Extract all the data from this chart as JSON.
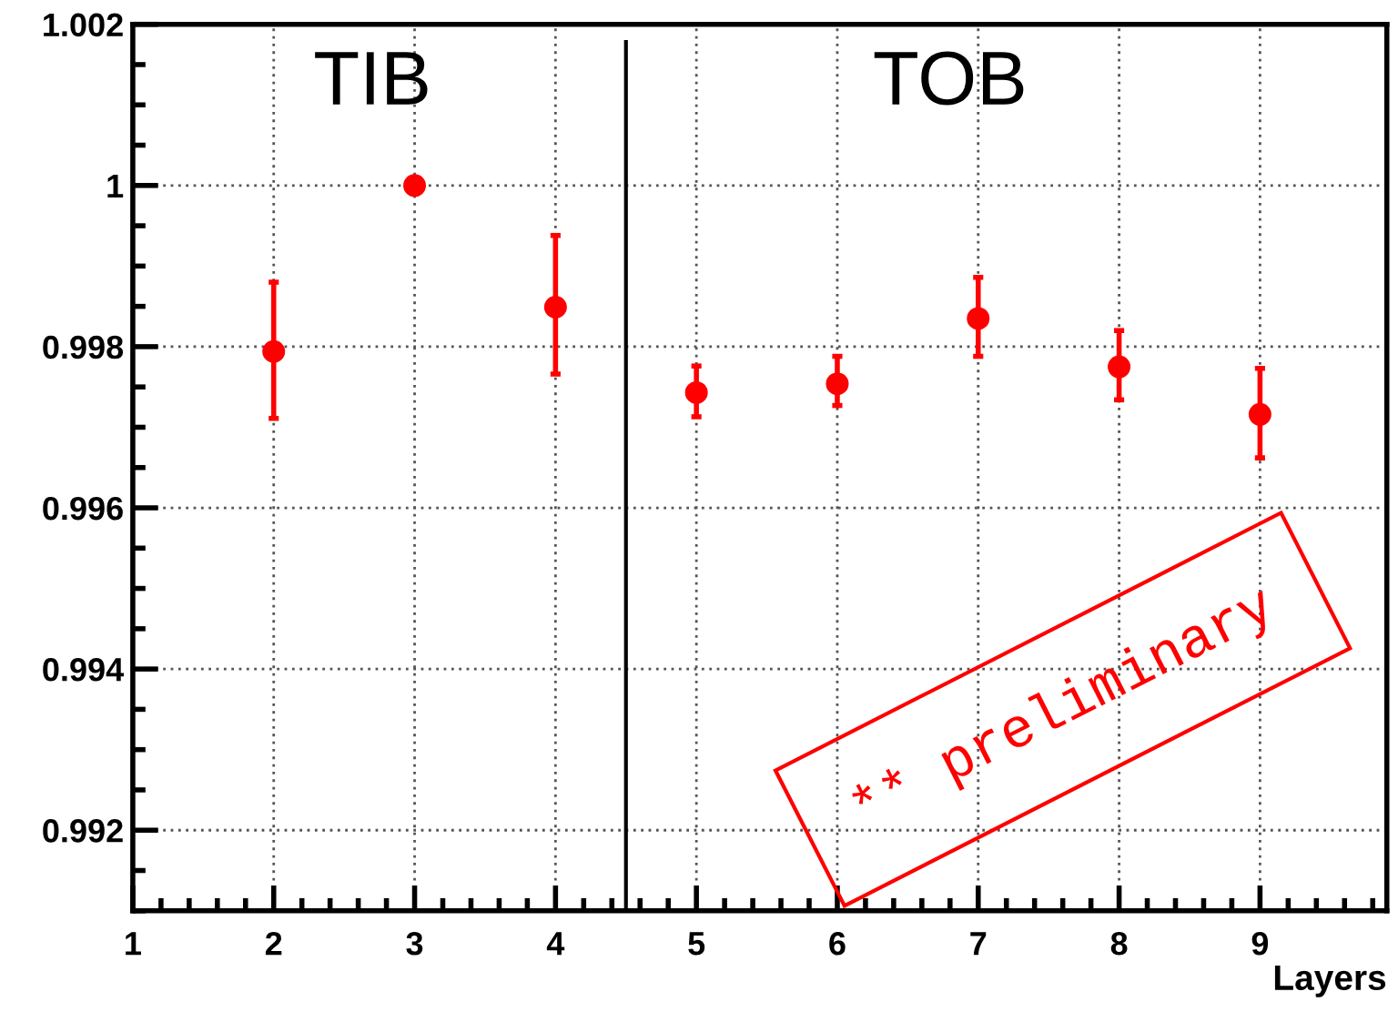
{
  "chart_data": {
    "type": "scatter",
    "xlabel": "Layers",
    "x": [
      2,
      3,
      4,
      5,
      6,
      7,
      8,
      9
    ],
    "series": [
      {
        "color": "#ff0000",
        "values": [
          0.99794,
          1.0,
          0.99849,
          0.99743,
          0.99754,
          0.99835,
          0.99775,
          0.99716
        ],
        "errors": [
          [
            0.99711,
            0.9988
          ],
          null,
          [
            0.99766,
            0.99938
          ],
          [
            0.99713,
            0.99776
          ],
          [
            0.99727,
            0.99788
          ],
          [
            0.99788,
            0.99886
          ],
          [
            0.99734,
            0.9982
          ],
          [
            0.99662,
            0.99773
          ]
        ]
      }
    ],
    "xlim": [
      1,
      9.9
    ],
    "ylim": [
      0.991,
      1.002
    ],
    "xticks": [
      1,
      2,
      3,
      4,
      5,
      6,
      7,
      8,
      9
    ],
    "yticks": [
      {
        "value": 0.992,
        "label": "0.992"
      },
      {
        "value": 0.994,
        "label": "0.994"
      },
      {
        "value": 0.996,
        "label": "0.996"
      },
      {
        "value": 0.998,
        "label": "0.998"
      },
      {
        "value": 1,
        "label": "1"
      },
      {
        "value": 1.002,
        "label": "1.002"
      }
    ],
    "ref_lines": [
      {
        "axis": "x",
        "value": 4.5,
        "color": "#000000"
      }
    ],
    "annotations": [
      "TIB",
      "TOB",
      "** preliminary"
    ],
    "grid": true,
    "marker": "circle",
    "legend": false
  }
}
